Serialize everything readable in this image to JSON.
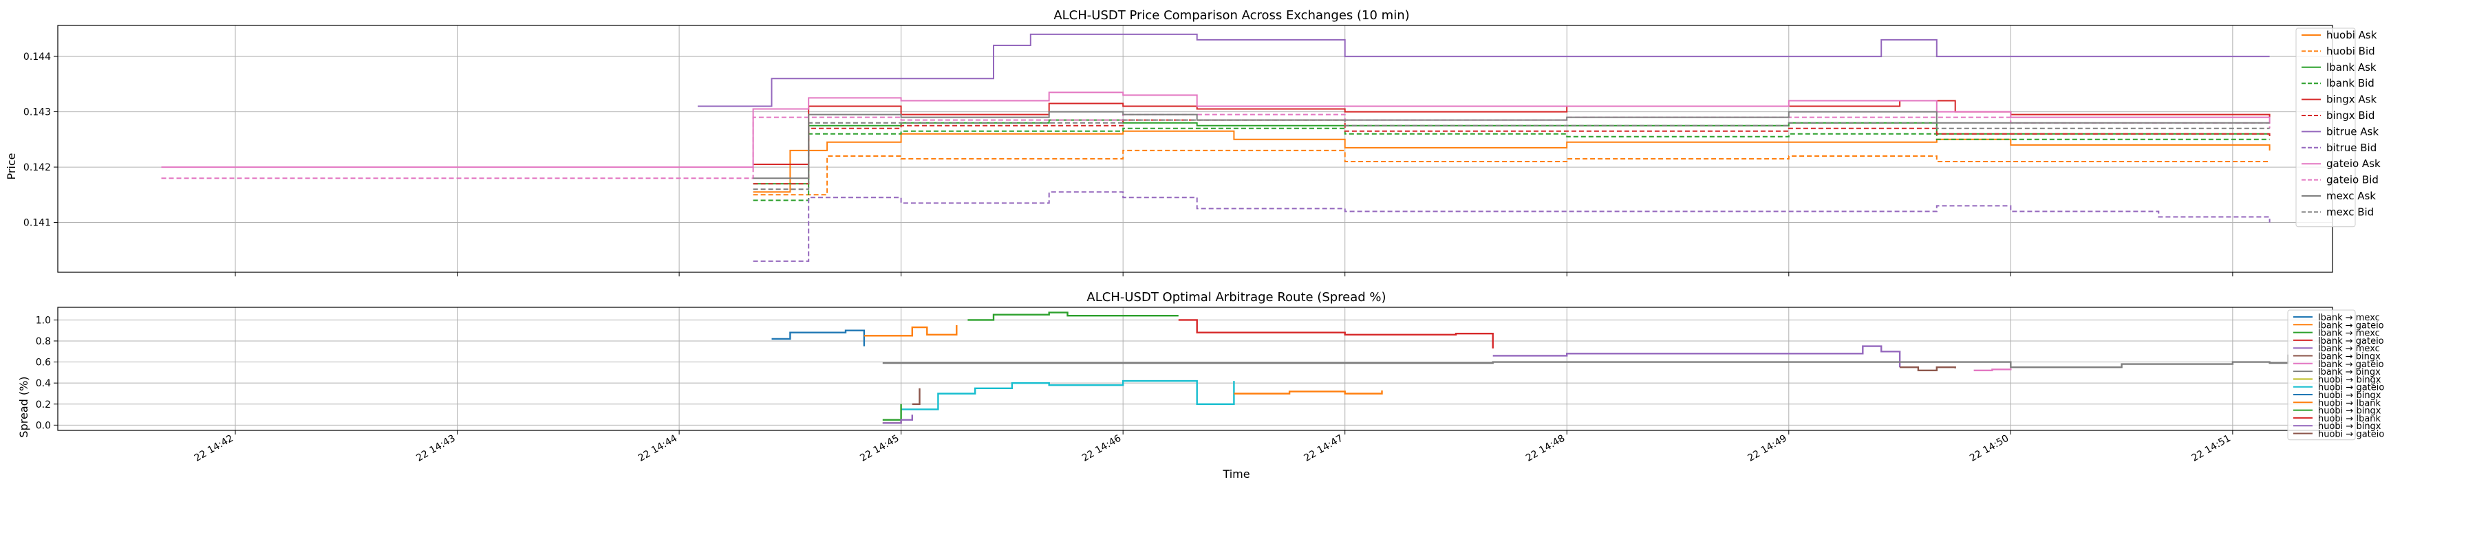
{
  "chart_data": [
    {
      "type": "line",
      "title": "ALCH-USDT Price Comparison Across Exchanges (10 min)",
      "xlabel": "",
      "ylabel": "Price",
      "ylim": [
        0.1401,
        0.14456
      ],
      "xlim": [
        "22 14:41:12",
        "22 14:51:27"
      ],
      "yticks": [
        0.141,
        0.142,
        0.143,
        0.144
      ],
      "ytick_labels": [
        "0.141",
        "0.142",
        "0.143",
        "0.144"
      ],
      "grid": true,
      "legend_position": "top-right",
      "series": [
        {
          "name": "huobi Ask",
          "color": "#ff7f0e",
          "style": "solid",
          "x": [
            "22 14:44:20",
            "22 14:44:30",
            "22 14:44:40",
            "22 14:45:00",
            "22 14:46:00",
            "22 14:46:30",
            "22 14:47:00",
            "22 14:48:00",
            "22 14:49:00",
            "22 14:49:40",
            "22 14:50:00",
            "22 14:51:10"
          ],
          "y": [
            0.14155,
            0.1423,
            0.14245,
            0.1426,
            0.14265,
            0.1425,
            0.14235,
            0.14245,
            0.14245,
            0.1425,
            0.1424,
            0.1423
          ]
        },
        {
          "name": "huobi Bid",
          "color": "#ff7f0e",
          "style": "dashed",
          "x": [
            "22 14:44:20",
            "22 14:44:40",
            "22 14:45:00",
            "22 14:46:00",
            "22 14:47:00",
            "22 14:48:00",
            "22 14:49:00",
            "22 14:49:40",
            "22 14:50:00",
            "22 14:51:10"
          ],
          "y": [
            0.1415,
            0.1422,
            0.14215,
            0.1423,
            0.1421,
            0.14215,
            0.1422,
            0.1421,
            0.1421,
            0.1421
          ]
        },
        {
          "name": "lbank Ask",
          "color": "#2ca02c",
          "style": "solid",
          "x": [
            "22 14:44:20",
            "22 14:44:35",
            "22 14:45:00",
            "22 14:45:40",
            "22 14:46:00",
            "22 14:46:20",
            "22 14:47:00",
            "22 14:48:00",
            "22 14:49:00",
            "22 14:49:40",
            "22 14:50:00",
            "22 14:51:10"
          ],
          "y": [
            0.1417,
            0.14275,
            0.1428,
            0.14285,
            0.1428,
            0.14275,
            0.14275,
            0.14275,
            0.1428,
            0.1426,
            0.1426,
            0.1426
          ]
        },
        {
          "name": "lbank Bid",
          "color": "#2ca02c",
          "style": "dashed",
          "x": [
            "22 14:44:20",
            "22 14:44:35",
            "22 14:45:00",
            "22 14:46:00",
            "22 14:47:00",
            "22 14:48:00",
            "22 14:49:00",
            "22 14:49:40",
            "22 14:50:00",
            "22 14:51:10"
          ],
          "y": [
            0.1414,
            0.1426,
            0.14265,
            0.1427,
            0.1426,
            0.14255,
            0.1426,
            0.1425,
            0.1425,
            0.1425
          ]
        },
        {
          "name": "bingx Ask",
          "color": "#d62728",
          "style": "solid",
          "x": [
            "22 14:44:20",
            "22 14:44:35",
            "22 14:45:00",
            "22 14:45:40",
            "22 14:46:00",
            "22 14:46:20",
            "22 14:47:00",
            "22 14:48:00",
            "22 14:49:00",
            "22 14:49:30",
            "22 14:49:45",
            "22 14:50:00",
            "22 14:51:10"
          ],
          "y": [
            0.14205,
            0.1431,
            0.14295,
            0.14315,
            0.1431,
            0.14305,
            0.143,
            0.1431,
            0.1431,
            0.1432,
            0.143,
            0.14295,
            0.1429
          ]
        },
        {
          "name": "bingx Bid",
          "color": "#d62728",
          "style": "dashed",
          "x": [
            "22 14:44:20",
            "22 14:44:35",
            "22 14:45:00",
            "22 14:46:00",
            "22 14:47:00",
            "22 14:48:00",
            "22 14:49:00",
            "22 14:49:40",
            "22 14:50:00",
            "22 14:51:10"
          ],
          "y": [
            0.1417,
            0.1427,
            0.14275,
            0.14285,
            0.14265,
            0.14265,
            0.1427,
            0.1426,
            0.1426,
            0.14255
          ]
        },
        {
          "name": "bitrue Ask",
          "color": "#9467bd",
          "style": "solid",
          "x": [
            "22 14:44:05",
            "22 14:44:25",
            "22 14:45:20",
            "22 14:45:25",
            "22 14:45:35",
            "22 14:46:15",
            "22 14:46:20",
            "22 14:46:40",
            "22 14:47:00",
            "22 14:48:00",
            "22 14:49:20",
            "22 14:49:25",
            "22 14:49:40",
            "22 14:50:00",
            "22 14:51:10"
          ],
          "y": [
            0.1431,
            0.1436,
            0.1436,
            0.1442,
            0.1444,
            0.1444,
            0.1443,
            0.1443,
            0.144,
            0.144,
            0.144,
            0.1443,
            0.144,
            0.144,
            0.144
          ]
        },
        {
          "name": "bitrue Bid",
          "color": "#9467bd",
          "style": "dashed",
          "x": [
            "22 14:44:20",
            "22 14:44:35",
            "22 14:45:00",
            "22 14:45:40",
            "22 14:46:00",
            "22 14:46:20",
            "22 14:47:00",
            "22 14:48:00",
            "22 14:49:20",
            "22 14:49:40",
            "22 14:50:00",
            "22 14:50:40",
            "22 14:51:10"
          ],
          "y": [
            0.1403,
            0.14145,
            0.14135,
            0.14155,
            0.14145,
            0.14125,
            0.1412,
            0.1412,
            0.1412,
            0.1413,
            0.1412,
            0.1411,
            0.141
          ]
        },
        {
          "name": "gateio Ask",
          "color": "#e377c2",
          "style": "solid",
          "x": [
            "22 14:41:40",
            "22 14:44:20",
            "22 14:44:35",
            "22 14:45:00",
            "22 14:45:40",
            "22 14:46:00",
            "22 14:46:20",
            "22 14:47:00",
            "22 14:48:00",
            "22 14:49:00",
            "22 14:49:40",
            "22 14:50:00",
            "22 14:51:10"
          ],
          "y": [
            0.142,
            0.14305,
            0.14325,
            0.1432,
            0.14335,
            0.1433,
            0.1431,
            0.1431,
            0.1431,
            0.1432,
            0.143,
            0.1429,
            0.1428
          ]
        },
        {
          "name": "gateio Bid",
          "color": "#e377c2",
          "style": "dashed",
          "x": [
            "22 14:41:40",
            "22 14:44:20",
            "22 14:44:35",
            "22 14:45:00",
            "22 14:46:00",
            "22 14:47:00",
            "22 14:48:00",
            "22 14:49:00",
            "22 14:50:00",
            "22 14:51:10"
          ],
          "y": [
            0.1418,
            0.1429,
            0.1429,
            0.14285,
            0.14295,
            0.14285,
            0.1429,
            0.1429,
            0.1428,
            0.1427
          ]
        },
        {
          "name": "mexc Ask",
          "color": "#7f7f7f",
          "style": "solid",
          "x": [
            "22 14:44:20",
            "22 14:44:35",
            "22 14:45:00",
            "22 14:45:40",
            "22 14:46:00",
            "22 14:46:20",
            "22 14:47:00",
            "22 14:48:00",
            "22 14:49:00",
            "22 14:49:40",
            "22 14:50:00",
            "22 14:51:10"
          ],
          "y": [
            0.1418,
            0.14295,
            0.1429,
            0.143,
            0.14295,
            0.14285,
            0.14285,
            0.1429,
            0.143,
            0.1428,
            0.1428,
            0.1428
          ]
        },
        {
          "name": "mexc Bid",
          "color": "#7f7f7f",
          "style": "dashed",
          "x": [
            "22 14:44:20",
            "22 14:44:35",
            "22 14:45:00",
            "22 14:46:00",
            "22 14:47:00",
            "22 14:48:00",
            "22 14:49:00",
            "22 14:49:40",
            "22 14:50:00",
            "22 14:51:10"
          ],
          "y": [
            0.1416,
            0.1428,
            0.1428,
            0.14285,
            0.14275,
            0.14275,
            0.1428,
            0.1427,
            0.1427,
            0.1427
          ]
        }
      ]
    },
    {
      "type": "line",
      "title": "ALCH-USDT Optimal Arbitrage Route (Spread %)",
      "xlabel": "Time",
      "ylabel": "Spread (%)",
      "ylim": [
        -0.05,
        1.12
      ],
      "xlim": [
        "22 14:41:12",
        "22 14:51:27"
      ],
      "yticks": [
        0.0,
        0.2,
        0.4,
        0.6,
        0.8,
        1.0
      ],
      "ytick_labels": [
        "0.0",
        "0.2",
        "0.4",
        "0.6",
        "0.8",
        "1.0"
      ],
      "xtick_labels": [
        "22 14:42",
        "22 14:43",
        "22 14:44",
        "22 14:45",
        "22 14:46",
        "22 14:47",
        "22 14:48",
        "22 14:49",
        "22 14:50",
        "22 14:51"
      ],
      "grid": true,
      "legend_position": "right",
      "series": [
        {
          "name": "lbank → mexc",
          "color": "#1f77b4",
          "x": [
            "22 14:44:25",
            "22 14:44:30",
            "22 14:44:40",
            "22 14:44:45",
            "22 14:44:50"
          ],
          "y": [
            0.82,
            0.88,
            0.88,
            0.9,
            0.75
          ]
        },
        {
          "name": "lbank → gateio",
          "color": "#ff7f0e",
          "x": [
            "22 14:44:50",
            "22 14:45:00",
            "22 14:45:03",
            "22 14:45:07",
            "22 14:45:15"
          ],
          "y": [
            0.85,
            0.85,
            0.93,
            0.86,
            0.95
          ]
        },
        {
          "name": "lbank → mexc",
          "color": "#2ca02c",
          "x": [
            "22 14:45:18",
            "22 14:45:25",
            "22 14:45:40",
            "22 14:45:45",
            "22 14:46:00",
            "22 14:46:15"
          ],
          "y": [
            1.0,
            1.05,
            1.07,
            1.04,
            1.04,
            1.04
          ]
        },
        {
          "name": "lbank → gateio",
          "color": "#d62728",
          "x": [
            "22 14:46:15",
            "22 14:46:20",
            "22 14:47:00",
            "22 14:47:30",
            "22 14:47:40"
          ],
          "y": [
            1.0,
            0.88,
            0.86,
            0.87,
            0.73
          ]
        },
        {
          "name": "lbank → mexc",
          "color": "#9467bd",
          "x": [
            "22 14:47:40",
            "22 14:48:00",
            "22 14:49:20",
            "22 14:49:25",
            "22 14:49:30"
          ],
          "y": [
            0.66,
            0.68,
            0.75,
            0.7,
            0.55
          ]
        },
        {
          "name": "lbank → bingx",
          "color": "#8c564b",
          "x": [
            "22 14:49:30",
            "22 14:49:35",
            "22 14:49:40",
            "22 14:49:45"
          ],
          "y": [
            0.55,
            0.52,
            0.55,
            0.54
          ]
        },
        {
          "name": "lbank → gateio",
          "color": "#e377c2",
          "x": [
            "22 14:49:50",
            "22 14:49:55",
            "22 14:50:00"
          ],
          "y": [
            0.52,
            0.53,
            0.54
          ]
        },
        {
          "name": "lbank → bingx",
          "color": "#7f7f7f",
          "x": [
            "22 14:44:55",
            "22 14:47:40",
            "22 14:50:00",
            "22 14:50:30",
            "22 14:51:00",
            "22 14:51:10",
            "22 14:51:15"
          ],
          "y": [
            0.59,
            0.6,
            0.55,
            0.58,
            0.6,
            0.59,
            0.67
          ]
        },
        {
          "name": "huobi → bingx",
          "color": "#bcbd22",
          "x": [
            "22 14:44:55",
            "22 14:45:00"
          ],
          "y": [
            0.02,
            0.05
          ]
        },
        {
          "name": "huobi → gateio",
          "color": "#17becf",
          "x": [
            "22 14:45:00",
            "22 14:45:10",
            "22 14:45:20",
            "22 14:45:30",
            "22 14:45:40",
            "22 14:46:00",
            "22 14:46:15",
            "22 14:46:20",
            "22 14:46:30"
          ],
          "y": [
            0.15,
            0.3,
            0.35,
            0.4,
            0.38,
            0.42,
            0.42,
            0.2,
            0.42
          ]
        },
        {
          "name": "huobi → bingx",
          "color": "#1f77b4",
          "x": [],
          "y": []
        },
        {
          "name": "huobi → lbank",
          "color": "#ff7f0e",
          "x": [
            "22 14:46:30",
            "22 14:46:45",
            "22 14:47:00",
            "22 14:47:10"
          ],
          "y": [
            0.3,
            0.32,
            0.3,
            0.33
          ]
        },
        {
          "name": "huobi → bingx",
          "color": "#2ca02c",
          "x": [
            "22 14:44:55",
            "22 14:45:00"
          ],
          "y": [
            0.05,
            0.2
          ]
        },
        {
          "name": "huobi → lbank",
          "color": "#d62728",
          "x": [],
          "y": []
        },
        {
          "name": "huobi → bingx",
          "color": "#9467bd",
          "x": [
            "22 14:44:55",
            "22 14:45:00",
            "22 14:45:03"
          ],
          "y": [
            0.02,
            0.05,
            0.1
          ]
        },
        {
          "name": "huobi → gateio",
          "color": "#8c564b",
          "x": [
            "22 14:45:03",
            "22 14:45:05"
          ],
          "y": [
            0.2,
            0.35
          ]
        }
      ]
    }
  ]
}
